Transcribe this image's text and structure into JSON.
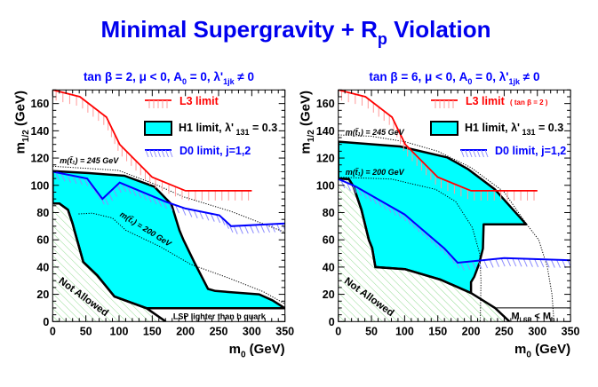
{
  "title": [
    {
      "t": "Minimal Supergravity + R"
    },
    {
      "s": "p"
    },
    {
      "t": " Violation"
    }
  ],
  "colors": {
    "title": "#0000ee",
    "l3": "#ff0000",
    "l3_hatch": "#ff9a9a",
    "h1_fill": "#00ffff",
    "d0": "#0000ff",
    "d0_hatch": "#8c8cff",
    "not_allowed_hatch": "#8fdc8f",
    "boundary": "#000000"
  },
  "chart_data": [
    {
      "type": "line",
      "panel_title": [
        {
          "t": "tan β = 2, μ < 0, A"
        },
        {
          "s": "0"
        },
        {
          "t": " = 0, λ'"
        },
        {
          "s": "1jk"
        },
        {
          "t": " ≠ 0"
        }
      ],
      "xlabel": [
        {
          "t": "m"
        },
        {
          "s": "0"
        },
        {
          "t": " (GeV)"
        }
      ],
      "ylabel": [
        {
          "t": "m"
        },
        {
          "s": "1/2"
        },
        {
          "t": " (GeV)"
        }
      ],
      "xlim": [
        0,
        350
      ],
      "ylim": [
        0,
        170
      ],
      "xticks": [
        0,
        50,
        100,
        150,
        200,
        250,
        300,
        350
      ],
      "yticks": [
        0,
        20,
        40,
        60,
        80,
        100,
        120,
        140,
        160
      ],
      "legend": {
        "l3": [
          {
            "t": "L3 limit"
          }
        ],
        "l3_note": "",
        "h1": [
          {
            "t": "H1 limit, λ'"
          },
          {
            "s": " 131"
          },
          {
            "t": " = 0.3"
          }
        ],
        "d0": [
          {
            "t": "D0 limit, j=1,2"
          }
        ]
      },
      "l3": [
        [
          0,
          170
        ],
        [
          41,
          165
        ],
        [
          81,
          150
        ],
        [
          101,
          130
        ],
        [
          150,
          106
        ],
        [
          200,
          96
        ],
        [
          300,
          96
        ]
      ],
      "d0": [
        [
          0,
          110
        ],
        [
          52,
          105
        ],
        [
          75,
          90
        ],
        [
          101,
          102
        ],
        [
          170,
          88
        ],
        [
          200,
          83
        ],
        [
          251,
          78
        ],
        [
          269,
          70
        ],
        [
          350,
          72
        ]
      ],
      "h1_region": [
        [
          0,
          110.5
        ],
        [
          54.5,
          109
        ],
        [
          108,
          107
        ],
        [
          153,
          99
        ],
        [
          179,
          86
        ],
        [
          191,
          67
        ],
        [
          197,
          60
        ],
        [
          214,
          43
        ],
        [
          234,
          24
        ],
        [
          245,
          22.5
        ],
        [
          311,
          20
        ],
        [
          331,
          15.6
        ],
        [
          350,
          9.8
        ],
        [
          141.5,
          9.8
        ],
        [
          93,
          18.4
        ],
        [
          67,
          34
        ],
        [
          46,
          43.8
        ],
        [
          33,
          66.6
        ],
        [
          30,
          72
        ],
        [
          23,
          82
        ],
        [
          10,
          86.6
        ],
        [
          0,
          86.6
        ]
      ],
      "not_allowed_region": [
        [
          0,
          86.6
        ],
        [
          10,
          86.6
        ],
        [
          23,
          82
        ],
        [
          30,
          72
        ],
        [
          33,
          66.6
        ],
        [
          46,
          43.8
        ],
        [
          67,
          34
        ],
        [
          93,
          18.4
        ],
        [
          141.5,
          9.8
        ],
        [
          170.5,
          0
        ]
      ],
      "stop_245": [
        [
          0,
          114
        ],
        [
          99,
          111
        ],
        [
          153,
          101
        ],
        [
          197,
          91.6
        ],
        [
          269,
          80.8
        ],
        [
          323,
          70.6
        ],
        [
          350,
          65.5
        ]
      ],
      "stop_200": [
        [
          39,
          79
        ],
        [
          60,
          79.5
        ],
        [
          90,
          76
        ],
        [
          110,
          67
        ],
        [
          162,
          55
        ],
        [
          208,
          42
        ],
        [
          265,
          32
        ],
        [
          317,
          22
        ],
        [
          350,
          13
        ]
      ],
      "stop_245_label": "m(t̃₁) = 245 GeV",
      "stop_200_label": "m(t̃₁) = 200 GeV",
      "not_allowed_label": "Not Allowed",
      "lsp_box": {
        "m0_from": 141.5,
        "m0_to": 350,
        "m12": 9.8,
        "label": [
          {
            "t": "LSP lighter than b quark"
          }
        ]
      }
    },
    {
      "type": "line",
      "panel_title": [
        {
          "t": "tan β = 6, μ < 0, A"
        },
        {
          "s": "0"
        },
        {
          "t": " = 0, λ'"
        },
        {
          "s": "1jk"
        },
        {
          "t": " ≠ 0"
        }
      ],
      "xlabel": [
        {
          "t": "m"
        },
        {
          "s": "0"
        },
        {
          "t": " (GeV)"
        }
      ],
      "ylabel": [
        {
          "t": "m"
        },
        {
          "s": "1/2"
        },
        {
          "t": " (GeV)"
        }
      ],
      "xlim": [
        0,
        350
      ],
      "ylim": [
        0,
        170
      ],
      "xticks": [
        0,
        50,
        100,
        150,
        200,
        250,
        300,
        350
      ],
      "yticks": [
        0,
        20,
        40,
        60,
        80,
        100,
        120,
        140,
        160
      ],
      "legend": {
        "l3": [
          {
            "t": "L3 limit"
          }
        ],
        "l3_note": "( tan β = 2 )",
        "h1": [
          {
            "t": "H1 limit, λ'"
          },
          {
            "s": " 131"
          },
          {
            "t": " = 0.3"
          }
        ],
        "d0": [
          {
            "t": "D0 limit, j=1,2"
          }
        ]
      },
      "l3": [
        [
          0,
          170
        ],
        [
          41,
          165
        ],
        [
          81,
          150
        ],
        [
          101,
          130
        ],
        [
          150,
          106
        ],
        [
          200,
          96
        ],
        [
          300,
          96
        ]
      ],
      "d0": [
        [
          0,
          104.6
        ],
        [
          26,
          99.2
        ],
        [
          100,
          78.6
        ],
        [
          160,
          53.6
        ],
        [
          180,
          43.2
        ],
        [
          250,
          46.6
        ],
        [
          350,
          45
        ]
      ],
      "h1_region": [
        [
          0,
          132
        ],
        [
          93,
          128.5
        ],
        [
          164,
          120.5
        ],
        [
          195,
          112
        ],
        [
          236,
          97
        ],
        [
          283,
          71.4
        ],
        [
          219,
          71.4
        ],
        [
          218,
          53.6
        ],
        [
          212,
          42
        ],
        [
          205,
          33
        ],
        [
          200,
          29
        ],
        [
          200,
          21
        ],
        [
          154,
          30.8
        ],
        [
          101,
          38.4
        ],
        [
          56,
          40
        ],
        [
          51,
          54
        ],
        [
          46,
          60
        ],
        [
          35,
          82
        ],
        [
          23,
          99
        ],
        [
          16,
          104.6
        ],
        [
          0,
          105
        ]
      ],
      "not_allowed_region": [
        [
          0,
          105
        ],
        [
          16,
          104.6
        ],
        [
          23,
          99
        ],
        [
          35,
          82
        ],
        [
          46,
          60
        ],
        [
          51,
          54
        ],
        [
          56,
          40
        ],
        [
          101,
          38.4
        ],
        [
          154,
          30.8
        ],
        [
          200,
          21
        ],
        [
          236,
          10
        ],
        [
          258,
          0
        ]
      ],
      "stop_245": [
        [
          0,
          137
        ],
        [
          50,
          136
        ],
        [
          100,
          132
        ],
        [
          150,
          125
        ],
        [
          200,
          113
        ],
        [
          250,
          95
        ],
        [
          283,
          72
        ],
        [
          302,
          60
        ],
        [
          315,
          40
        ],
        [
          322,
          20
        ],
        [
          325,
          0
        ]
      ],
      "stop_200": [
        [
          0,
          106
        ],
        [
          80,
          104.6
        ],
        [
          147,
          97
        ],
        [
          177,
          88
        ],
        [
          202,
          69
        ],
        [
          213,
          50
        ],
        [
          215,
          30
        ],
        [
          214,
          0
        ]
      ],
      "stop_245_label": "m(t̃₁) = 245 GeV",
      "stop_200_label": "m(t̃₁) = 200 GeV",
      "not_allowed_label": "Not Allowed",
      "lsp_box": {
        "m0_from": 237,
        "m0_to": 350,
        "m12": 10,
        "label": [
          {
            "t": "M"
          },
          {
            "s": "LSP"
          },
          {
            "t": " < M"
          },
          {
            "s": "b"
          }
        ]
      }
    }
  ]
}
